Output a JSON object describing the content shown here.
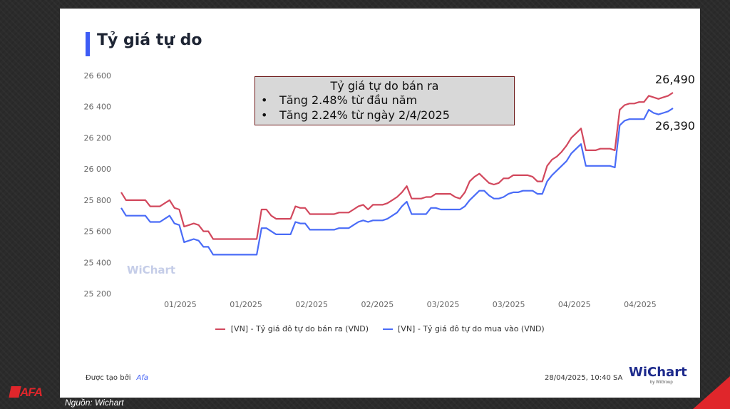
{
  "title": "Tỷ giá tự do",
  "annotation": {
    "heading": "Tỷ giá tự do bán ra",
    "bullets": [
      "Tăng 2.48% từ đầu năm",
      "Tăng 2.24% từ ngày 2/4/2025"
    ]
  },
  "end_labels": {
    "sell": "26,490",
    "buy": "26,390"
  },
  "watermark": "WiChart",
  "footer": {
    "created_by": "Được tạo bởi",
    "creator": "Afa",
    "timestamp": "28/04/2025, 10:40 SA"
  },
  "brand": {
    "name": "WiChart",
    "sub": "by WiGroup"
  },
  "logo": "AFA",
  "source": "Nguồn: Wichart",
  "colors": {
    "sell": "#d2485d",
    "buy": "#4a6cf7",
    "accent": "#3d5cf5",
    "corner": "#e0262b"
  },
  "chart_data": {
    "type": "line",
    "y_ticks": [
      "26 600",
      "26 400",
      "26 200",
      "26 000",
      "25 800",
      "25 600",
      "25 400",
      "25 200"
    ],
    "ylim": [
      25200,
      26600
    ],
    "x_tick_labels": [
      "01/2025",
      "01/2025",
      "02/2025",
      "02/2025",
      "03/2025",
      "03/2025",
      "04/2025",
      "04/2025"
    ],
    "x_tick_positions": [
      9,
      19,
      29,
      39,
      49,
      59,
      69,
      79
    ],
    "x_range": [
      0,
      84
    ],
    "grid": false,
    "legend_position": "bottom",
    "series": [
      {
        "name": "[VN] - Tỷ giá đô tự do bán ra (VND)",
        "key": "sell",
        "values": [
          25850,
          25800,
          25800,
          25800,
          25800,
          25800,
          25760,
          25760,
          25760,
          25780,
          25800,
          25750,
          25740,
          25630,
          25640,
          25650,
          25640,
          25600,
          25600,
          25550,
          25550,
          25550,
          25550,
          25550,
          25550,
          25550,
          25550,
          25550,
          25550,
          25740,
          25740,
          25700,
          25680,
          25680,
          25680,
          25680,
          25760,
          25750,
          25750,
          25710,
          25710,
          25710,
          25710,
          25710,
          25710,
          25720,
          25720,
          25720,
          25740,
          25760,
          25770,
          25740,
          25770,
          25770,
          25770,
          25780,
          25800,
          25820,
          25850,
          25890,
          25810,
          25810,
          25810,
          25820,
          25820,
          25840,
          25840,
          25840,
          25840,
          25820,
          25810,
          25850,
          25920,
          25950,
          25970,
          25940,
          25910,
          25900,
          25910,
          25940,
          25940,
          25960,
          25960,
          25960,
          25960,
          25950,
          25920,
          25920,
          26020,
          26060,
          26080,
          26110,
          26150,
          26200,
          26230,
          26260,
          26120,
          26120,
          26120,
          26130,
          26130,
          26130,
          26120,
          26380,
          26410,
          26420,
          26420,
          26430,
          26430,
          26470,
          26460,
          26450,
          26460,
          26470,
          26490
        ]
      },
      {
        "name": "[VN] - Tỷ giá đô tự do mua vào (VND)",
        "key": "buy",
        "values": [
          25750,
          25700,
          25700,
          25700,
          25700,
          25700,
          25660,
          25660,
          25660,
          25680,
          25700,
          25650,
          25640,
          25530,
          25540,
          25550,
          25540,
          25500,
          25500,
          25450,
          25450,
          25450,
          25450,
          25450,
          25450,
          25450,
          25450,
          25450,
          25450,
          25620,
          25620,
          25600,
          25580,
          25580,
          25580,
          25580,
          25660,
          25650,
          25650,
          25610,
          25610,
          25610,
          25610,
          25610,
          25610,
          25620,
          25620,
          25620,
          25640,
          25660,
          25670,
          25660,
          25670,
          25670,
          25670,
          25680,
          25700,
          25720,
          25760,
          25790,
          25710,
          25710,
          25710,
          25710,
          25750,
          25750,
          25740,
          25740,
          25740,
          25740,
          25740,
          25760,
          25800,
          25830,
          25860,
          25860,
          25830,
          25810,
          25810,
          25820,
          25840,
          25850,
          25850,
          25860,
          25860,
          25860,
          25840,
          25840,
          25920,
          25960,
          25990,
          26020,
          26050,
          26100,
          26130,
          26160,
          26020,
          26020,
          26020,
          26020,
          26020,
          26020,
          26010,
          26280,
          26310,
          26320,
          26320,
          26320,
          26320,
          26380,
          26360,
          26350,
          26360,
          26370,
          26390
        ]
      }
    ]
  }
}
